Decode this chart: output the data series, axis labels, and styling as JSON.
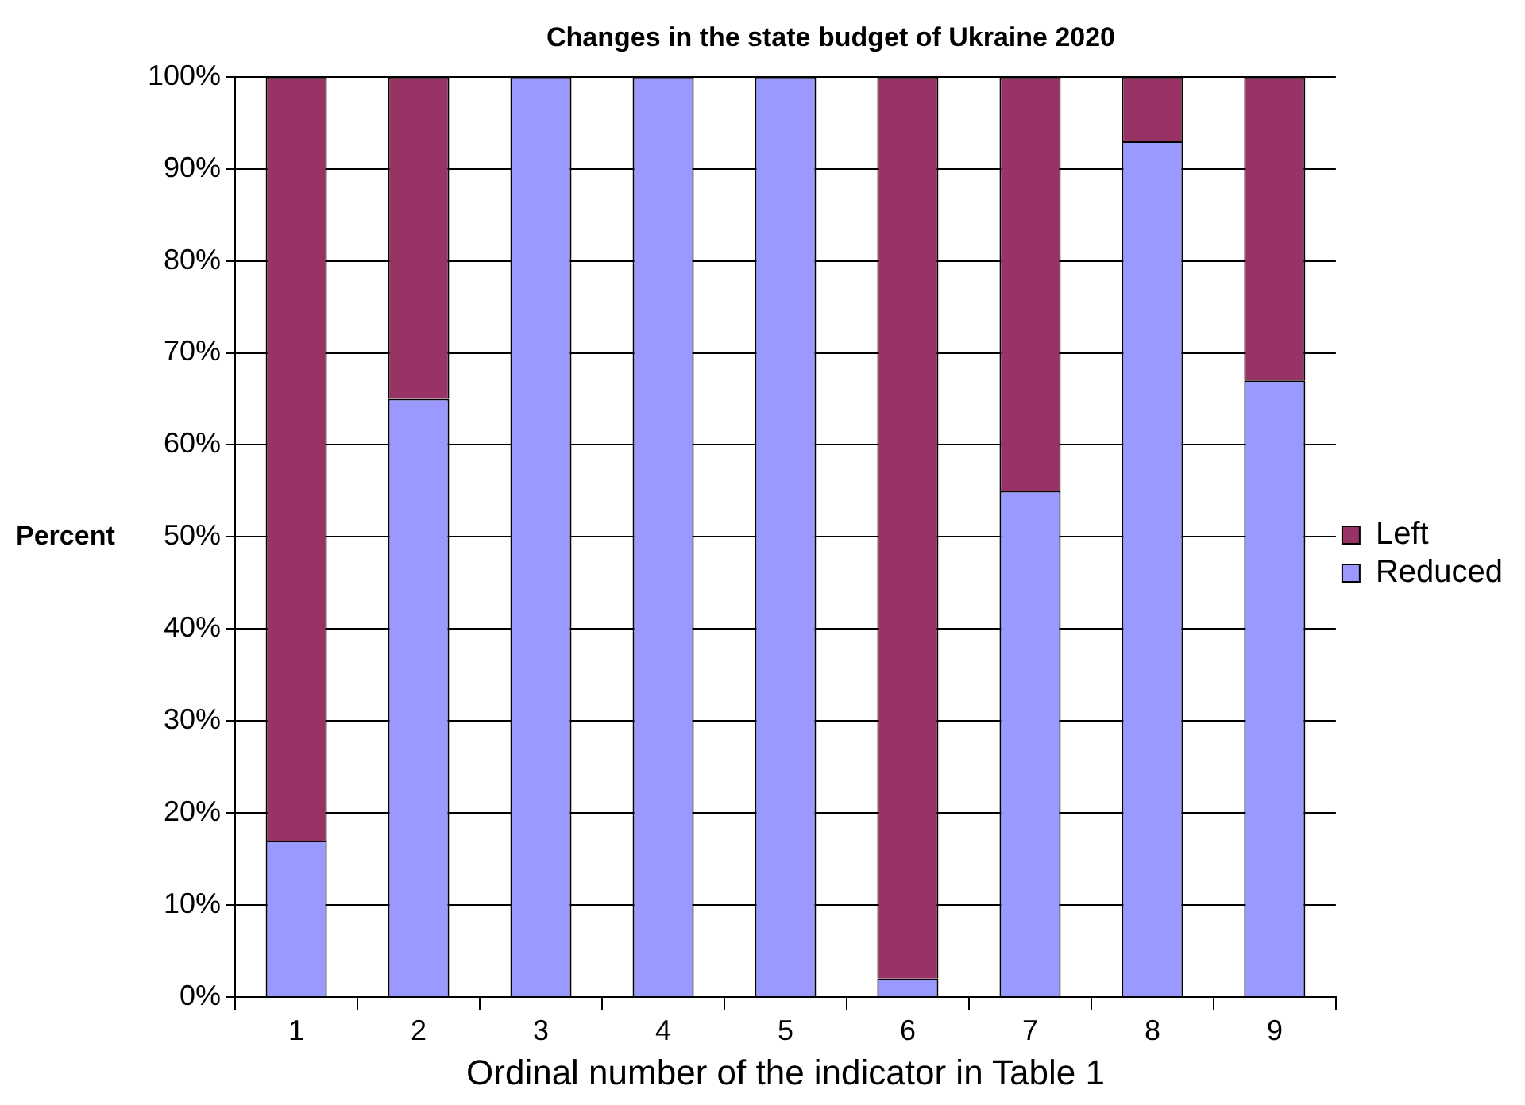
{
  "chart_data": {
    "type": "bar",
    "title": "Changes in the state budget of Ukraine 2020",
    "xlabel": "Ordinal number of the indicator in Table 1",
    "ylabel": "Percent",
    "categories": [
      "1",
      "2",
      "3",
      "4",
      "5",
      "6",
      "7",
      "8",
      "9"
    ],
    "stacked": true,
    "series": [
      {
        "name": "Reduced",
        "color": "#9999ff",
        "values": [
          17,
          65,
          100,
          100,
          100,
          2,
          55,
          93,
          67
        ]
      },
      {
        "name": "Left",
        "color": "#993366",
        "values": [
          83,
          35,
          0,
          0,
          0,
          98,
          45,
          7,
          33
        ]
      }
    ],
    "ylim": [
      0,
      100
    ],
    "yticks": [
      {
        "value": 0,
        "label": "0%"
      },
      {
        "value": 10,
        "label": "10%"
      },
      {
        "value": 20,
        "label": "20%"
      },
      {
        "value": 30,
        "label": "30%"
      },
      {
        "value": 40,
        "label": "40%"
      },
      {
        "value": 50,
        "label": "50%"
      },
      {
        "value": 60,
        "label": "60%"
      },
      {
        "value": 70,
        "label": "70%"
      },
      {
        "value": 80,
        "label": "80%"
      },
      {
        "value": 90,
        "label": "90%"
      },
      {
        "value": 100,
        "label": "100%"
      }
    ],
    "grid": "y",
    "legend": "right"
  }
}
